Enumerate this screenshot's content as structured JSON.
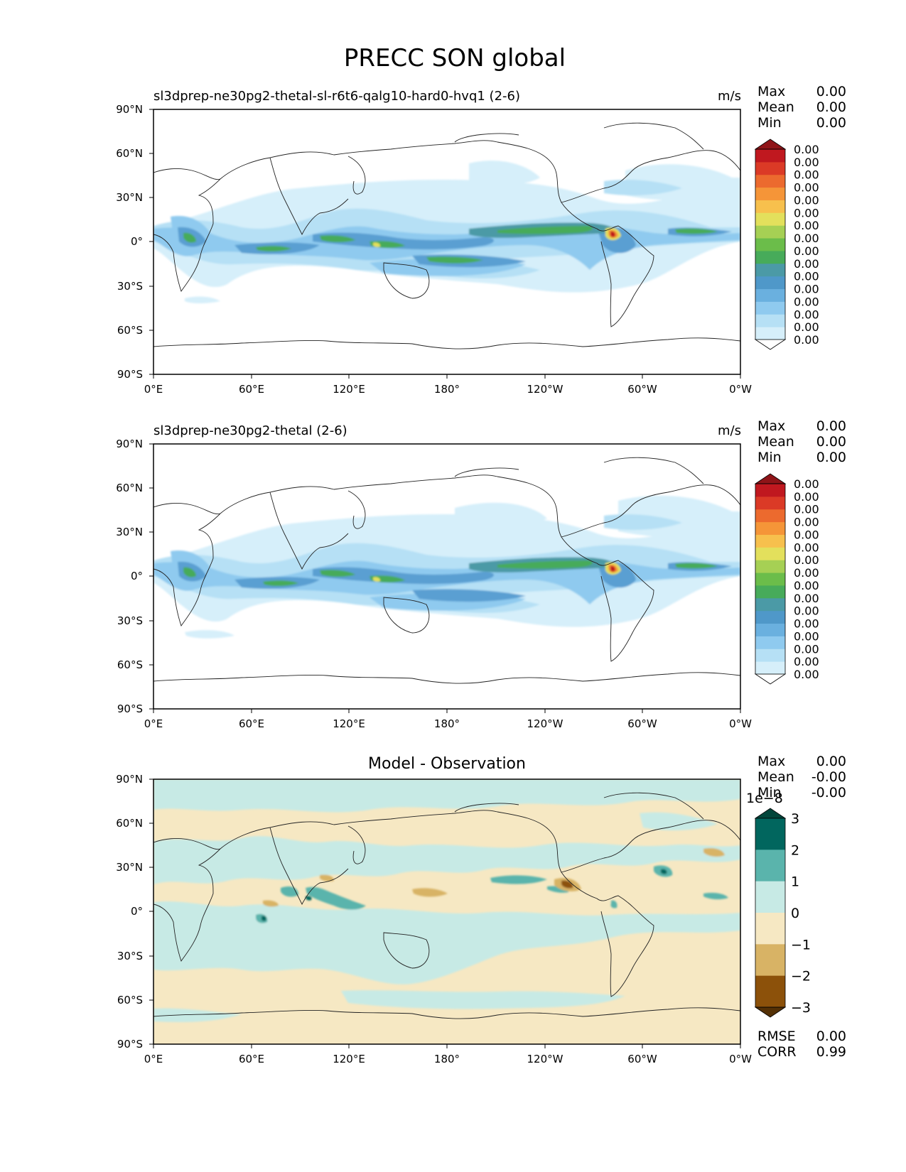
{
  "figure": {
    "title": "PRECC SON global"
  },
  "chart_data": [
    {
      "type": "heatmap",
      "title": "sl3dprep-ne30pg2-thetal-sl-r6t6-qalg10-hard0-hvq1 (2-6)",
      "units": "m/s",
      "xlim": [
        0,
        360
      ],
      "ylim": [
        -90,
        90
      ],
      "x_tick_labels": [
        "0°E",
        "60°E",
        "120°E",
        "180°",
        "120°W",
        "60°W",
        "0°W"
      ],
      "y_tick_labels": [
        "90°N",
        "60°N",
        "30°N",
        "0°",
        "30°S",
        "60°S",
        "90°S"
      ],
      "stats": [
        {
          "label": "Max",
          "value": "0.00"
        },
        {
          "label": "Mean",
          "value": "0.00"
        },
        {
          "label": "Min",
          "value": "0.00"
        }
      ],
      "colorbar_labels": [
        "0.00",
        "0.00",
        "0.00",
        "0.00",
        "0.00",
        "0.00",
        "0.00",
        "0.00",
        "0.00",
        "0.00",
        "0.00",
        "0.00",
        "0.00",
        "0.00",
        "0.00",
        "0.00"
      ],
      "colorbar_colors": [
        "#ffffff",
        "#d6effa",
        "#b6e0f5",
        "#8fcaef",
        "#6ab0df",
        "#4f98c9",
        "#4b9aa6",
        "#47ab5a",
        "#6bbd4a",
        "#a6d054",
        "#e3e05c",
        "#f7c04d",
        "#f59538",
        "#ec6a2e",
        "#db3a26",
        "#c0181f",
        "#8f1418"
      ],
      "grid": false,
      "legend": "right"
    },
    {
      "type": "heatmap",
      "title": "sl3dprep-ne30pg2-thetal (2-6)",
      "units": "m/s",
      "xlim": [
        0,
        360
      ],
      "ylim": [
        -90,
        90
      ],
      "x_tick_labels": [
        "0°E",
        "60°E",
        "120°E",
        "180°",
        "120°W",
        "60°W",
        "0°W"
      ],
      "y_tick_labels": [
        "90°N",
        "60°N",
        "30°N",
        "0°",
        "30°S",
        "60°S",
        "90°S"
      ],
      "stats": [
        {
          "label": "Max",
          "value": "0.00"
        },
        {
          "label": "Mean",
          "value": "0.00"
        },
        {
          "label": "Min",
          "value": "0.00"
        }
      ],
      "colorbar_labels": [
        "0.00",
        "0.00",
        "0.00",
        "0.00",
        "0.00",
        "0.00",
        "0.00",
        "0.00",
        "0.00",
        "0.00",
        "0.00",
        "0.00",
        "0.00",
        "0.00",
        "0.00",
        "0.00"
      ],
      "colorbar_colors": [
        "#ffffff",
        "#d6effa",
        "#b6e0f5",
        "#8fcaef",
        "#6ab0df",
        "#4f98c9",
        "#4b9aa6",
        "#47ab5a",
        "#6bbd4a",
        "#a6d054",
        "#e3e05c",
        "#f7c04d",
        "#f59538",
        "#ec6a2e",
        "#db3a26",
        "#c0181f",
        "#8f1418"
      ],
      "grid": false,
      "legend": "right"
    },
    {
      "type": "heatmap",
      "title": "Model - Observation",
      "xlim": [
        0,
        360
      ],
      "ylim": [
        -90,
        90
      ],
      "x_tick_labels": [
        "0°E",
        "60°E",
        "120°E",
        "180°",
        "120°W",
        "60°W",
        "0°W"
      ],
      "y_tick_labels": [
        "90°N",
        "60°N",
        "30°N",
        "0°",
        "30°S",
        "60°S",
        "90°S"
      ],
      "stats": [
        {
          "label": "Max",
          "value": "0.00"
        },
        {
          "label": "Mean",
          "value": "-0.00"
        },
        {
          "label": "Min",
          "value": "-0.00"
        }
      ],
      "colorbar_scale_label": "1e−8",
      "colorbar_labels": [
        "3",
        "2",
        "1",
        "0",
        "−1",
        "−2",
        "−3"
      ],
      "colorbar_colors": [
        "#01463b",
        "#01665e",
        "#5ab4ac",
        "#c7eae5",
        "#f6e8c3",
        "#d8b365",
        "#8c510a",
        "#543005"
      ],
      "extra_stats": [
        {
          "label": "RMSE",
          "value": "0.00"
        },
        {
          "label": "CORR",
          "value": "0.99"
        }
      ],
      "grid": false,
      "legend": "right"
    }
  ]
}
